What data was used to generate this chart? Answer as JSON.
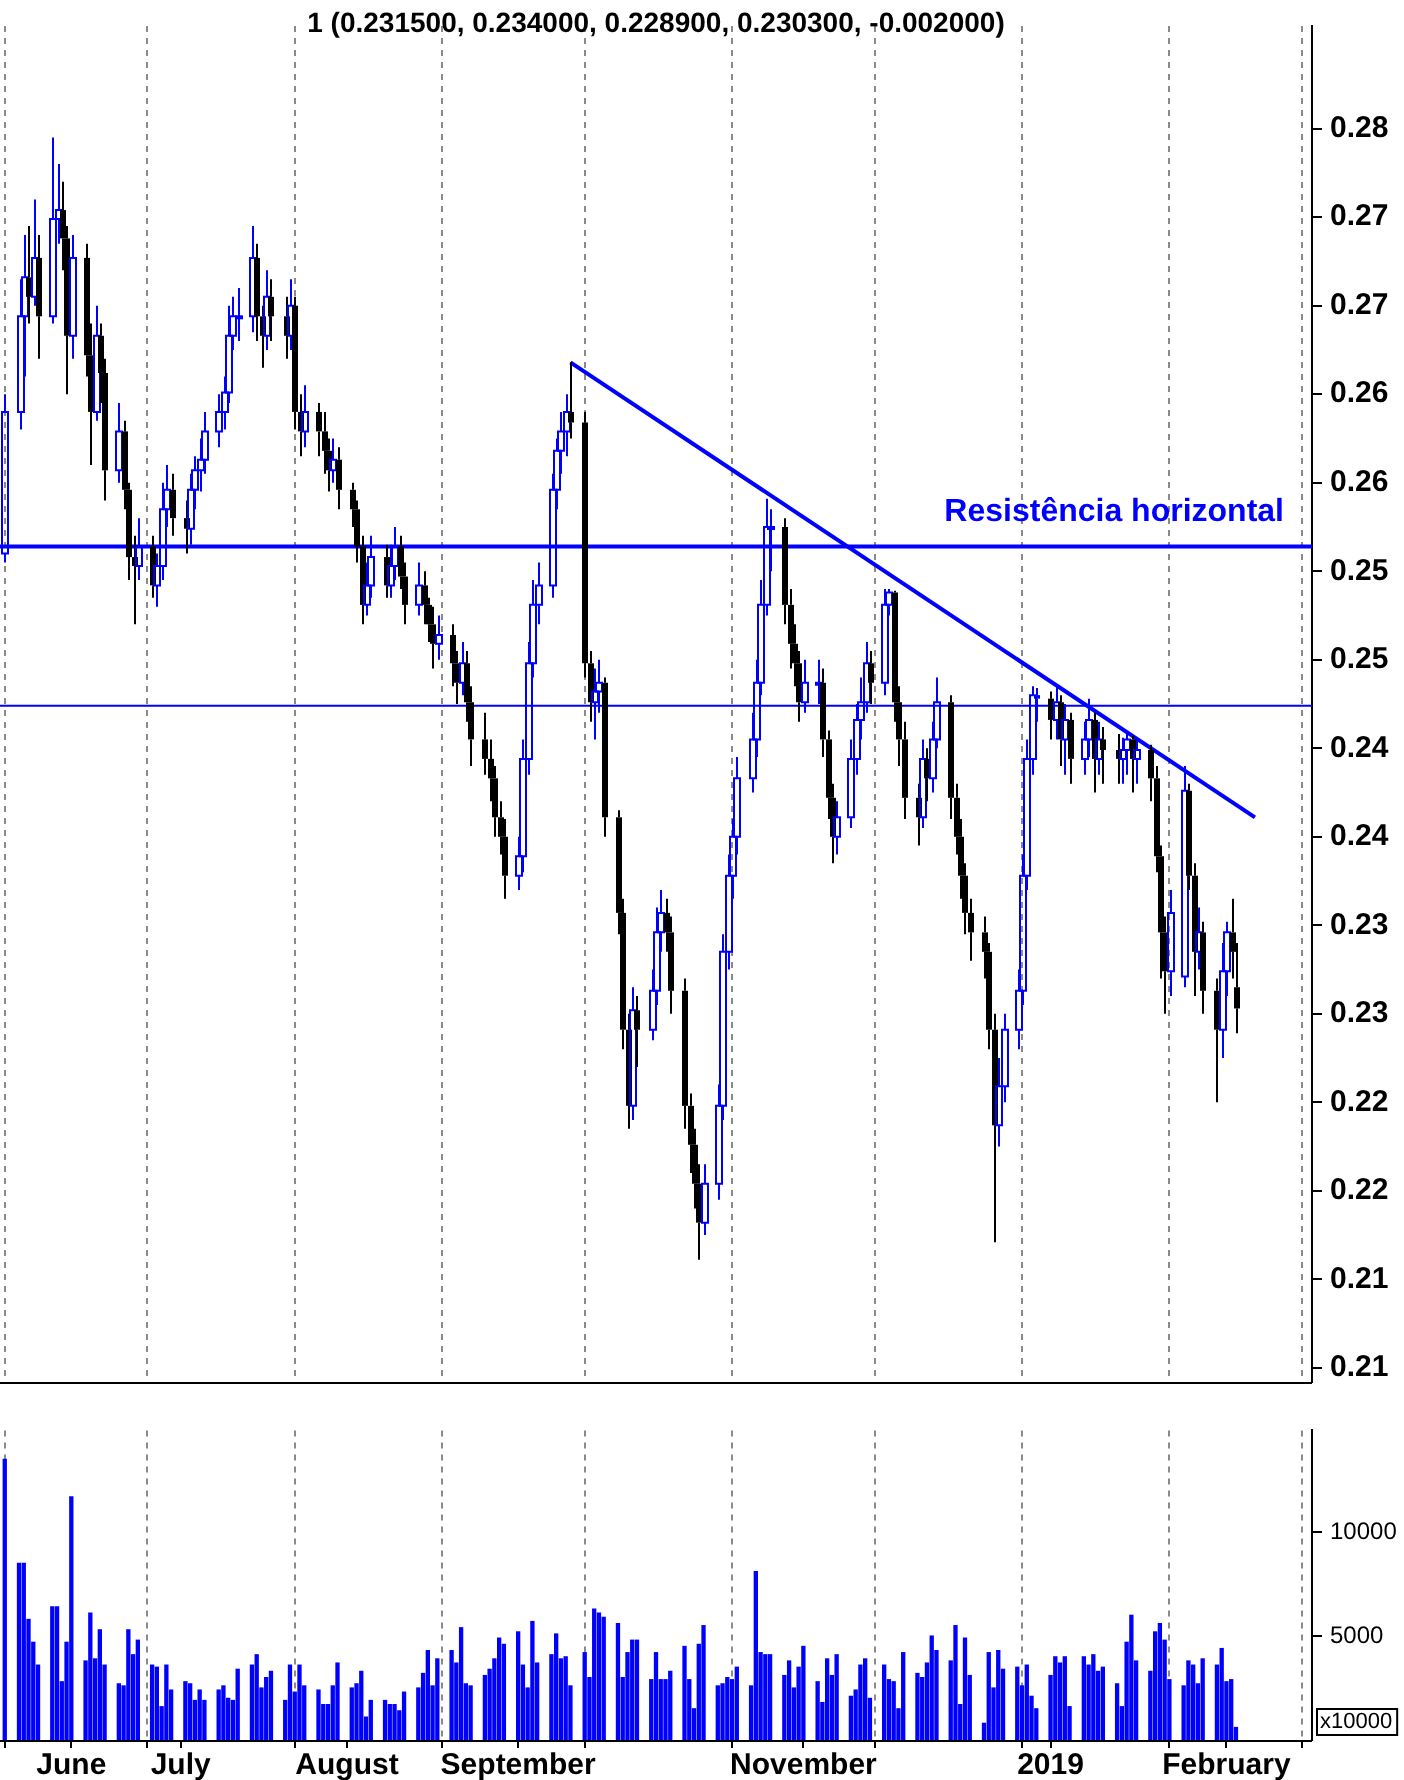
{
  "chart_data": [
    {
      "type": "candlestick",
      "title": "1 (0.231500, 0.234000, 0.228900, 0.230300, -0.002000)",
      "tick_labels": "y",
      "grid": "x",
      "xlim": [
        "2018-05-31",
        "2019-03-03"
      ],
      "xticks": [
        {
          "value": "2018-06-01",
          "label": null
        },
        {
          "value": "2018-07-01",
          "label": null
        },
        {
          "value": "2018-08-01",
          "label": null
        },
        {
          "value": "2018-09-01",
          "label": null
        },
        {
          "value": "2018-10-01",
          "label": null
        },
        {
          "value": "2018-11-01",
          "label": null
        },
        {
          "value": "2018-12-01",
          "label": null
        },
        {
          "value": "2019-01-01",
          "label": null
        },
        {
          "value": "2019-02-01",
          "label": null
        },
        {
          "value": "2019-03-01",
          "label": null
        }
      ],
      "ylim": [
        0.2092,
        0.2858
      ],
      "yticks": [
        {
          "value": 0.21,
          "label": "0.21"
        },
        {
          "value": 0.215,
          "label": "0.21"
        },
        {
          "value": 0.22,
          "label": "0.22"
        },
        {
          "value": 0.225,
          "label": "0.22"
        },
        {
          "value": 0.23,
          "label": "0.23"
        },
        {
          "value": 0.235,
          "label": "0.23"
        },
        {
          "value": 0.24,
          "label": "0.24"
        },
        {
          "value": 0.245,
          "label": "0.24"
        },
        {
          "value": 0.25,
          "label": "0.25"
        },
        {
          "value": 0.255,
          "label": "0.25"
        },
        {
          "value": 0.26,
          "label": "0.26"
        },
        {
          "value": 0.265,
          "label": "0.26"
        },
        {
          "value": 0.27,
          "label": "0.27"
        },
        {
          "value": 0.275,
          "label": "0.27"
        },
        {
          "value": 0.28,
          "label": "0.28"
        }
      ],
      "ref_lines": [
        {
          "axis": "y",
          "value": 0.2564,
          "label": "Resistência horizontal",
          "color": "#0000ff"
        },
        {
          "axis": "y",
          "value": 0.2474,
          "color": "#0000ff"
        }
      ],
      "series": [
        {
          "type": "line",
          "x": [
            "2018-09-28",
            "2019-02-19"
          ],
          "values": [
            0.2668,
            0.2411
          ],
          "color": "#0000ff"
        }
      ],
      "x": [
        "2018-06-01",
        "2018-06-04",
        "2018-06-05",
        "2018-06-06",
        "2018-06-07",
        "2018-06-08",
        "2018-06-11",
        "2018-06-12",
        "2018-06-13",
        "2018-06-14",
        "2018-06-15",
        "2018-06-18",
        "2018-06-19",
        "2018-06-20",
        "2018-06-21",
        "2018-06-22",
        "2018-06-25",
        "2018-06-26",
        "2018-06-27",
        "2018-06-28",
        "2018-06-29",
        "2018-07-02",
        "2018-07-03",
        "2018-07-04",
        "2018-07-05",
        "2018-07-06",
        "2018-07-09",
        "2018-07-10",
        "2018-07-11",
        "2018-07-12",
        "2018-07-13",
        "2018-07-16",
        "2018-07-17",
        "2018-07-18",
        "2018-07-19",
        "2018-07-20",
        "2018-07-23",
        "2018-07-24",
        "2018-07-25",
        "2018-07-26",
        "2018-07-27",
        "2018-07-30",
        "2018-07-31",
        "2018-08-01",
        "2018-08-02",
        "2018-08-03",
        "2018-08-06",
        "2018-08-07",
        "2018-08-08",
        "2018-08-09",
        "2018-08-10",
        "2018-08-13",
        "2018-08-14",
        "2018-08-15",
        "2018-08-16",
        "2018-08-17",
        "2018-08-20",
        "2018-08-21",
        "2018-08-22",
        "2018-08-23",
        "2018-08-24",
        "2018-08-27",
        "2018-08-28",
        "2018-08-29",
        "2018-08-30",
        "2018-08-31",
        "2018-09-03",
        "2018-09-04",
        "2018-09-05",
        "2018-09-06",
        "2018-09-07",
        "2018-09-10",
        "2018-09-11",
        "2018-09-12",
        "2018-09-13",
        "2018-09-14",
        "2018-09-17",
        "2018-09-18",
        "2018-09-19",
        "2018-09-20",
        "2018-09-21",
        "2018-09-24",
        "2018-09-25",
        "2018-09-26",
        "2018-09-27",
        "2018-09-28",
        "2018-10-01",
        "2018-10-02",
        "2018-10-03",
        "2018-10-04",
        "2018-10-05",
        "2018-10-08",
        "2018-10-09",
        "2018-10-10",
        "2018-10-11",
        "2018-10-12",
        "2018-10-15",
        "2018-10-16",
        "2018-10-17",
        "2018-10-18",
        "2018-10-19",
        "2018-10-22",
        "2018-10-23",
        "2018-10-24",
        "2018-10-25",
        "2018-10-26",
        "2018-10-29",
        "2018-10-30",
        "2018-10-31",
        "2018-11-01",
        "2018-11-02",
        "2018-11-05",
        "2018-11-06",
        "2018-11-07",
        "2018-11-08",
        "2018-11-09",
        "2018-11-12",
        "2018-11-13",
        "2018-11-14",
        "2018-11-15",
        "2018-11-16",
        "2018-11-19",
        "2018-11-20",
        "2018-11-21",
        "2018-11-22",
        "2018-11-23",
        "2018-11-26",
        "2018-11-27",
        "2018-11-28",
        "2018-11-29",
        "2018-11-30",
        "2018-12-03",
        "2018-12-04",
        "2018-12-05",
        "2018-12-06",
        "2018-12-07",
        "2018-12-10",
        "2018-12-11",
        "2018-12-12",
        "2018-12-13",
        "2018-12-14",
        "2018-12-17",
        "2018-12-18",
        "2018-12-19",
        "2018-12-20",
        "2018-12-21",
        "2018-12-24",
        "2018-12-25",
        "2018-12-26",
        "2018-12-27",
        "2018-12-28",
        "2018-12-31",
        "2019-01-01",
        "2019-01-02",
        "2019-01-03",
        "2019-01-04",
        "2019-01-07",
        "2019-01-08",
        "2019-01-09",
        "2019-01-10",
        "2019-01-11",
        "2019-01-14",
        "2019-01-15",
        "2019-01-16",
        "2019-01-17",
        "2019-01-18",
        "2019-01-21",
        "2019-01-22",
        "2019-01-23",
        "2019-01-24",
        "2019-01-25",
        "2019-01-28",
        "2019-01-29",
        "2019-01-30",
        "2019-01-31",
        "2019-02-01",
        "2019-02-04",
        "2019-02-05",
        "2019-02-06",
        "2019-02-07",
        "2019-02-08",
        "2019-02-11",
        "2019-02-12",
        "2019-02-13",
        "2019-02-14",
        "2019-02-15"
      ],
      "ohlc": [
        [
          0.256,
          0.265,
          0.2555,
          0.264
        ],
        [
          0.264,
          0.2715,
          0.263,
          0.2694
        ],
        [
          0.2694,
          0.274,
          0.266,
          0.2716
        ],
        [
          0.2716,
          0.2745,
          0.269,
          0.2705
        ],
        [
          0.2705,
          0.276,
          0.27,
          0.2727
        ],
        [
          0.2727,
          0.274,
          0.267,
          0.2694
        ],
        [
          0.2694,
          0.2795,
          0.269,
          0.2749
        ],
        [
          0.2749,
          0.278,
          0.2735,
          0.2754
        ],
        [
          0.2754,
          0.277,
          0.272,
          0.2738
        ],
        [
          0.2738,
          0.2745,
          0.265,
          0.2683
        ],
        [
          0.2683,
          0.274,
          0.267,
          0.2727
        ],
        [
          0.2727,
          0.2735,
          0.266,
          0.2672
        ],
        [
          0.2672,
          0.269,
          0.261,
          0.264
        ],
        [
          0.264,
          0.27,
          0.2635,
          0.2683
        ],
        [
          0.2683,
          0.269,
          0.2645,
          0.2662
        ],
        [
          0.2662,
          0.267,
          0.259,
          0.2607
        ],
        [
          0.2607,
          0.2645,
          0.26,
          0.2629
        ],
        [
          0.2629,
          0.2635,
          0.2585,
          0.2596
        ],
        [
          0.2596,
          0.26,
          0.2545,
          0.2558
        ],
        [
          0.2558,
          0.257,
          0.252,
          0.2553
        ],
        [
          0.2553,
          0.258,
          0.2545,
          0.2564
        ],
        [
          0.2564,
          0.257,
          0.2535,
          0.2542
        ],
        [
          0.2542,
          0.256,
          0.253,
          0.2553
        ],
        [
          0.2553,
          0.26,
          0.2545,
          0.2585
        ],
        [
          0.2585,
          0.261,
          0.2575,
          0.2596
        ],
        [
          0.2596,
          0.2605,
          0.257,
          0.258
        ],
        [
          0.258,
          0.259,
          0.256,
          0.2574
        ],
        [
          0.2574,
          0.2605,
          0.2565,
          0.2596
        ],
        [
          0.2596,
          0.2615,
          0.2585,
          0.2607
        ],
        [
          0.2607,
          0.2625,
          0.2595,
          0.2613
        ],
        [
          0.2613,
          0.264,
          0.2605,
          0.2629
        ],
        [
          0.2629,
          0.265,
          0.262,
          0.264
        ],
        [
          0.264,
          0.266,
          0.263,
          0.2651
        ],
        [
          0.2651,
          0.27,
          0.2645,
          0.2683
        ],
        [
          0.2683,
          0.2705,
          0.2675,
          0.2694
        ],
        [
          0.2694,
          0.271,
          0.268,
          0.2694
        ],
        [
          0.2694,
          0.2745,
          0.2685,
          0.2727
        ],
        [
          0.2727,
          0.2735,
          0.268,
          0.2694
        ],
        [
          0.2694,
          0.27,
          0.2665,
          0.2683
        ],
        [
          0.2683,
          0.272,
          0.2675,
          0.2705
        ],
        [
          0.2705,
          0.2715,
          0.268,
          0.2694
        ],
        [
          0.2694,
          0.2705,
          0.267,
          0.2683
        ],
        [
          0.2683,
          0.2715,
          0.2675,
          0.27
        ],
        [
          0.27,
          0.2705,
          0.263,
          0.264
        ],
        [
          0.264,
          0.265,
          0.2615,
          0.2629
        ],
        [
          0.2629,
          0.2655,
          0.262,
          0.264
        ],
        [
          0.264,
          0.2645,
          0.2615,
          0.2629
        ],
        [
          0.2629,
          0.264,
          0.2605,
          0.2618
        ],
        [
          0.2618,
          0.2625,
          0.2595,
          0.2607
        ],
        [
          0.2607,
          0.2625,
          0.26,
          0.2613
        ],
        [
          0.2613,
          0.262,
          0.2585,
          0.2596
        ],
        [
          0.2596,
          0.26,
          0.2575,
          0.2585
        ],
        [
          0.2585,
          0.259,
          0.2555,
          0.2564
        ],
        [
          0.2564,
          0.257,
          0.252,
          0.2531
        ],
        [
          0.2531,
          0.2555,
          0.2525,
          0.2542
        ],
        [
          0.2542,
          0.257,
          0.2535,
          0.2558
        ],
        [
          0.2558,
          0.2565,
          0.2535,
          0.2542
        ],
        [
          0.2542,
          0.2565,
          0.2535,
          0.2553
        ],
        [
          0.2553,
          0.2575,
          0.2545,
          0.2564
        ],
        [
          0.2564,
          0.257,
          0.254,
          0.2547
        ],
        [
          0.2547,
          0.2555,
          0.252,
          0.2531
        ],
        [
          0.2531,
          0.2555,
          0.2525,
          0.2542
        ],
        [
          0.2542,
          0.255,
          0.252,
          0.2531
        ],
        [
          0.2531,
          0.2535,
          0.251,
          0.252
        ],
        [
          0.252,
          0.253,
          0.2495,
          0.2509
        ],
        [
          0.2509,
          0.2525,
          0.25,
          0.2514
        ],
        [
          0.2514,
          0.252,
          0.2485,
          0.2498
        ],
        [
          0.2498,
          0.2505,
          0.2475,
          0.2487
        ],
        [
          0.2487,
          0.251,
          0.248,
          0.2498
        ],
        [
          0.2498,
          0.2505,
          0.2465,
          0.2476
        ],
        [
          0.2476,
          0.2485,
          0.244,
          0.2455
        ],
        [
          0.2455,
          0.247,
          0.2435,
          0.2444
        ],
        [
          0.2444,
          0.2455,
          0.242,
          0.2433
        ],
        [
          0.2433,
          0.244,
          0.24,
          0.2411
        ],
        [
          0.2411,
          0.242,
          0.239,
          0.24
        ],
        [
          0.24,
          0.241,
          0.2365,
          0.2378
        ],
        [
          0.2378,
          0.24,
          0.237,
          0.2389
        ],
        [
          0.2389,
          0.2455,
          0.238,
          0.2444
        ],
        [
          0.2444,
          0.251,
          0.2435,
          0.2498
        ],
        [
          0.2498,
          0.2545,
          0.249,
          0.2531
        ],
        [
          0.2531,
          0.2555,
          0.252,
          0.2542
        ],
        [
          0.2542,
          0.2605,
          0.2535,
          0.2596
        ],
        [
          0.2596,
          0.2625,
          0.2585,
          0.2618
        ],
        [
          0.2618,
          0.264,
          0.2605,
          0.2629
        ],
        [
          0.2629,
          0.265,
          0.2615,
          0.264
        ],
        [
          0.264,
          0.2668,
          0.2625,
          0.2634
        ],
        [
          0.2634,
          0.264,
          0.249,
          0.2498
        ],
        [
          0.2498,
          0.2505,
          0.2465,
          0.2476
        ],
        [
          0.2476,
          0.2495,
          0.2455,
          0.2482
        ],
        [
          0.2482,
          0.25,
          0.247,
          0.2487
        ],
        [
          0.2487,
          0.249,
          0.24,
          0.2411
        ],
        [
          0.2411,
          0.2415,
          0.2345,
          0.2357
        ],
        [
          0.2357,
          0.2365,
          0.228,
          0.2291
        ],
        [
          0.2291,
          0.23,
          0.2235,
          0.2248
        ],
        [
          0.2248,
          0.2315,
          0.224,
          0.2302
        ],
        [
          0.2302,
          0.231,
          0.227,
          0.2291
        ],
        [
          0.2291,
          0.2325,
          0.2285,
          0.2313
        ],
        [
          0.2313,
          0.236,
          0.2305,
          0.2346
        ],
        [
          0.2346,
          0.237,
          0.2335,
          0.2357
        ],
        [
          0.2357,
          0.2365,
          0.2335,
          0.2346
        ],
        [
          0.2346,
          0.2355,
          0.23,
          0.2313
        ],
        [
          0.2313,
          0.232,
          0.2235,
          0.2248
        ],
        [
          0.2248,
          0.2255,
          0.221,
          0.2226
        ],
        [
          0.2226,
          0.2235,
          0.219,
          0.2204
        ],
        [
          0.2204,
          0.2215,
          0.2161,
          0.2182
        ],
        [
          0.2182,
          0.2215,
          0.2175,
          0.2204
        ],
        [
          0.2204,
          0.226,
          0.2195,
          0.2248
        ],
        [
          0.2248,
          0.2345,
          0.224,
          0.2335
        ],
        [
          0.2335,
          0.239,
          0.2325,
          0.2378
        ],
        [
          0.2378,
          0.241,
          0.2365,
          0.24
        ],
        [
          0.24,
          0.2445,
          0.239,
          0.2433
        ],
        [
          0.2433,
          0.247,
          0.2425,
          0.2455
        ],
        [
          0.2455,
          0.25,
          0.2445,
          0.2487
        ],
        [
          0.2487,
          0.2545,
          0.248,
          0.2531
        ],
        [
          0.2531,
          0.2591,
          0.2525,
          0.2575
        ],
        [
          0.2575,
          0.2585,
          0.255,
          0.2575
        ],
        [
          0.2575,
          0.258,
          0.252,
          0.2531
        ],
        [
          0.2531,
          0.254,
          0.2495,
          0.2509
        ],
        [
          0.2509,
          0.252,
          0.2485,
          0.2498
        ],
        [
          0.2498,
          0.2505,
          0.2465,
          0.2476
        ],
        [
          0.2476,
          0.25,
          0.247,
          0.2487
        ],
        [
          0.2487,
          0.25,
          0.2475,
          0.2487
        ],
        [
          0.2487,
          0.2495,
          0.2445,
          0.2455
        ],
        [
          0.2455,
          0.246,
          0.241,
          0.2422
        ],
        [
          0.2422,
          0.243,
          0.2385,
          0.24
        ],
        [
          0.24,
          0.242,
          0.239,
          0.2411
        ],
        [
          0.2411,
          0.2455,
          0.2405,
          0.2444
        ],
        [
          0.2444,
          0.2475,
          0.2435,
          0.2466
        ],
        [
          0.2466,
          0.249,
          0.2455,
          0.2476
        ],
        [
          0.2476,
          0.251,
          0.247,
          0.2498
        ],
        [
          0.2498,
          0.2505,
          0.2475,
          0.2487
        ],
        [
          0.2487,
          0.254,
          0.248,
          0.2531
        ],
        [
          0.2531,
          0.254,
          0.2525,
          0.2538
        ],
        [
          0.2538,
          0.2539,
          0.2465,
          0.2476
        ],
        [
          0.2476,
          0.2485,
          0.244,
          0.2455
        ],
        [
          0.2455,
          0.2465,
          0.241,
          0.2422
        ],
        [
          0.2422,
          0.243,
          0.2395,
          0.2411
        ],
        [
          0.2411,
          0.2455,
          0.2405,
          0.2444
        ],
        [
          0.2444,
          0.245,
          0.242,
          0.2433
        ],
        [
          0.2433,
          0.2465,
          0.2425,
          0.2455
        ],
        [
          0.2455,
          0.249,
          0.245,
          0.2476
        ],
        [
          0.2476,
          0.248,
          0.241,
          0.2422
        ],
        [
          0.2422,
          0.243,
          0.239,
          0.24
        ],
        [
          0.24,
          0.241,
          0.2365,
          0.2378
        ],
        [
          0.2378,
          0.2385,
          0.2345,
          0.2357
        ],
        [
          0.2357,
          0.2365,
          0.233,
          0.2346
        ],
        [
          0.2346,
          0.2355,
          0.232,
          0.2335
        ],
        [
          0.2335,
          0.234,
          0.228,
          0.2291
        ],
        [
          0.2291,
          0.23,
          0.2171,
          0.2237
        ],
        [
          0.2237,
          0.2275,
          0.2225,
          0.2259
        ],
        [
          0.2259,
          0.23,
          0.225,
          0.2291
        ],
        [
          0.2291,
          0.2325,
          0.228,
          0.2313
        ],
        [
          0.2313,
          0.239,
          0.2305,
          0.2378
        ],
        [
          0.2378,
          0.2455,
          0.237,
          0.2444
        ],
        [
          0.2444,
          0.2485,
          0.2435,
          0.248
        ],
        [
          0.248,
          0.2484,
          0.2465,
          0.2478
        ],
        [
          0.2478,
          0.2482,
          0.2455,
          0.2466
        ],
        [
          0.2466,
          0.2485,
          0.2455,
          0.2476
        ],
        [
          0.2476,
          0.248,
          0.244,
          0.2455
        ],
        [
          0.2455,
          0.2475,
          0.2435,
          0.2466
        ],
        [
          0.2466,
          0.247,
          0.243,
          0.2444
        ],
        [
          0.2444,
          0.2465,
          0.2435,
          0.2455
        ],
        [
          0.2455,
          0.2478,
          0.2445,
          0.2466
        ],
        [
          0.2466,
          0.247,
          0.2425,
          0.2444
        ],
        [
          0.2444,
          0.2465,
          0.2435,
          0.2455
        ],
        [
          0.2455,
          0.2462,
          0.243,
          0.2449
        ],
        [
          0.2449,
          0.2458,
          0.243,
          0.2444
        ],
        [
          0.2444,
          0.2456,
          0.243,
          0.2449
        ],
        [
          0.2449,
          0.2458,
          0.2435,
          0.2455
        ],
        [
          0.2455,
          0.2457,
          0.2425,
          0.2444
        ],
        [
          0.2444,
          0.2455,
          0.243,
          0.2449
        ],
        [
          0.2449,
          0.2452,
          0.242,
          0.2433
        ],
        [
          0.2433,
          0.244,
          0.238,
          0.2389
        ],
        [
          0.2389,
          0.2395,
          0.232,
          0.2346
        ],
        [
          0.2346,
          0.2355,
          0.23,
          0.2324
        ],
        [
          0.2324,
          0.237,
          0.231,
          0.2357
        ],
        [
          0.2321,
          0.244,
          0.2315,
          0.2426
        ],
        [
          0.2426,
          0.243,
          0.237,
          0.2378
        ],
        [
          0.2378,
          0.2385,
          0.231,
          0.2335
        ],
        [
          0.2335,
          0.236,
          0.2325,
          0.2346
        ],
        [
          0.2346,
          0.2352,
          0.23,
          0.2313
        ],
        [
          0.2313,
          0.232,
          0.225,
          0.2291
        ],
        [
          0.2291,
          0.234,
          0.2275,
          0.2324
        ],
        [
          0.2324,
          0.2352,
          0.231,
          0.2346
        ],
        [
          0.2346,
          0.2365,
          0.232,
          0.2335
        ],
        [
          0.2315,
          0.234,
          0.2289,
          0.2303
        ]
      ],
      "colors": [
        "#0000ff",
        "#0000ff",
        "#0000ff",
        "#000000",
        "#0000ff",
        "#000000",
        "#0000ff",
        "#0000ff",
        "#000000",
        "#000000",
        "#0000ff",
        "#000000",
        "#000000",
        "#0000ff",
        "#000000",
        "#000000",
        "#0000ff",
        "#000000",
        "#000000",
        "#000000",
        "#0000ff",
        "#000000",
        "#0000ff",
        "#0000ff",
        "#0000ff",
        "#000000",
        "#000000",
        "#0000ff",
        "#0000ff",
        "#0000ff",
        "#0000ff",
        "#0000ff",
        "#0000ff",
        "#0000ff",
        "#0000ff",
        "#0000ff",
        "#0000ff",
        "#000000",
        "#000000",
        "#0000ff",
        "#000000",
        "#000000",
        "#0000ff",
        "#000000",
        "#000000",
        "#0000ff",
        "#000000",
        "#000000",
        "#000000",
        "#0000ff",
        "#000000",
        "#000000",
        "#000000",
        "#000000",
        "#0000ff",
        "#0000ff",
        "#000000",
        "#0000ff",
        "#0000ff",
        "#000000",
        "#000000",
        "#0000ff",
        "#000000",
        "#000000",
        "#000000",
        "#0000ff",
        "#000000",
        "#000000",
        "#0000ff",
        "#000000",
        "#000000",
        "#000000",
        "#000000",
        "#000000",
        "#000000",
        "#000000",
        "#0000ff",
        "#0000ff",
        "#0000ff",
        "#0000ff",
        "#0000ff",
        "#0000ff",
        "#0000ff",
        "#0000ff",
        "#0000ff",
        "#000000",
        "#000000",
        "#000000",
        "#0000ff",
        "#0000ff",
        "#000000",
        "#000000",
        "#000000",
        "#000000",
        "#0000ff",
        "#000000",
        "#0000ff",
        "#0000ff",
        "#0000ff",
        "#000000",
        "#000000",
        "#000000",
        "#000000",
        "#000000",
        "#000000",
        "#0000ff",
        "#0000ff",
        "#0000ff",
        "#0000ff",
        "#0000ff",
        "#0000ff",
        "#0000ff",
        "#0000ff",
        "#0000ff",
        "#0000ff",
        "#0000ff",
        "#000000",
        "#000000",
        "#000000",
        "#000000",
        "#0000ff",
        "#0000ff",
        "#000000",
        "#000000",
        "#000000",
        "#0000ff",
        "#0000ff",
        "#0000ff",
        "#0000ff",
        "#0000ff",
        "#000000",
        "#0000ff",
        "#0000ff",
        "#000000",
        "#000000",
        "#000000",
        "#000000",
        "#0000ff",
        "#000000",
        "#0000ff",
        "#0000ff",
        "#000000",
        "#000000",
        "#000000",
        "#000000",
        "#000000",
        "#000000",
        "#000000",
        "#000000",
        "#0000ff",
        "#0000ff",
        "#0000ff",
        "#0000ff",
        "#0000ff",
        "#0000ff",
        "#0000ff",
        "#000000",
        "#0000ff",
        "#000000",
        "#0000ff",
        "#000000",
        "#0000ff",
        "#0000ff",
        "#000000",
        "#0000ff",
        "#000000",
        "#000000",
        "#0000ff",
        "#0000ff",
        "#000000",
        "#0000ff",
        "#000000",
        "#000000",
        "#000000",
        "#000000",
        "#0000ff",
        "#0000ff",
        "#000000",
        "#000000",
        "#0000ff",
        "#000000",
        "#000000",
        "#0000ff",
        "#0000ff",
        "#000000",
        "#000000"
      ]
    },
    {
      "type": "bar",
      "grid": "x",
      "color": "#0000ff",
      "annotations": [
        "x10000"
      ],
      "xlim": [
        "2018-05-31",
        "2019-03-03"
      ],
      "xticks": [
        {
          "value": "2018-06-01",
          "label": null
        },
        {
          "value": "2018-06-15",
          "label": "June"
        },
        {
          "value": "2018-07-01",
          "label": null
        },
        {
          "value": "2018-07-08",
          "label": "July"
        },
        {
          "value": "2018-08-01",
          "label": null
        },
        {
          "value": "2018-08-12",
          "label": "August"
        },
        {
          "value": "2018-09-01",
          "label": null
        },
        {
          "value": "2018-09-17",
          "label": "September"
        },
        {
          "value": "2018-10-01",
          "label": null
        },
        {
          "value": "2018-11-01",
          "label": null
        },
        {
          "value": "2018-11-16",
          "label": "November"
        },
        {
          "value": "2018-12-01",
          "label": null
        },
        {
          "value": "2019-01-01",
          "label": null
        },
        {
          "value": "2019-01-07",
          "label": "2019"
        },
        {
          "value": "2019-02-01",
          "label": null
        },
        {
          "value": "2019-02-13",
          "label": "February"
        },
        {
          "value": "2019-03-01",
          "label": null
        }
      ],
      "ylim": [
        0,
        14900
      ],
      "yticks": [
        5000,
        10000
      ],
      "x": [
        "2018-06-01",
        "2018-06-04",
        "2018-06-05",
        "2018-06-06",
        "2018-06-07",
        "2018-06-08",
        "2018-06-11",
        "2018-06-12",
        "2018-06-13",
        "2018-06-14",
        "2018-06-15",
        "2018-06-18",
        "2018-06-19",
        "2018-06-20",
        "2018-06-21",
        "2018-06-22",
        "2018-06-25",
        "2018-06-26",
        "2018-06-27",
        "2018-06-28",
        "2018-06-29",
        "2018-07-02",
        "2018-07-03",
        "2018-07-04",
        "2018-07-05",
        "2018-07-06",
        "2018-07-09",
        "2018-07-10",
        "2018-07-11",
        "2018-07-12",
        "2018-07-13",
        "2018-07-16",
        "2018-07-17",
        "2018-07-18",
        "2018-07-19",
        "2018-07-20",
        "2018-07-23",
        "2018-07-24",
        "2018-07-25",
        "2018-07-26",
        "2018-07-27",
        "2018-07-30",
        "2018-07-31",
        "2018-08-01",
        "2018-08-02",
        "2018-08-03",
        "2018-08-06",
        "2018-08-07",
        "2018-08-08",
        "2018-08-09",
        "2018-08-10",
        "2018-08-13",
        "2018-08-14",
        "2018-08-15",
        "2018-08-16",
        "2018-08-17",
        "2018-08-20",
        "2018-08-21",
        "2018-08-22",
        "2018-08-23",
        "2018-08-24",
        "2018-08-27",
        "2018-08-28",
        "2018-08-29",
        "2018-08-30",
        "2018-08-31",
        "2018-09-03",
        "2018-09-04",
        "2018-09-05",
        "2018-09-06",
        "2018-09-07",
        "2018-09-10",
        "2018-09-11",
        "2018-09-12",
        "2018-09-13",
        "2018-09-14",
        "2018-09-17",
        "2018-09-18",
        "2018-09-19",
        "2018-09-20",
        "2018-09-21",
        "2018-09-24",
        "2018-09-25",
        "2018-09-26",
        "2018-09-27",
        "2018-09-28",
        "2018-10-01",
        "2018-10-02",
        "2018-10-03",
        "2018-10-04",
        "2018-10-05",
        "2018-10-08",
        "2018-10-09",
        "2018-10-10",
        "2018-10-11",
        "2018-10-12",
        "2018-10-15",
        "2018-10-16",
        "2018-10-17",
        "2018-10-18",
        "2018-10-19",
        "2018-10-22",
        "2018-10-23",
        "2018-10-24",
        "2018-10-25",
        "2018-10-26",
        "2018-10-29",
        "2018-10-30",
        "2018-10-31",
        "2018-11-01",
        "2018-11-02",
        "2018-11-05",
        "2018-11-06",
        "2018-11-07",
        "2018-11-08",
        "2018-11-09",
        "2018-11-12",
        "2018-11-13",
        "2018-11-14",
        "2018-11-15",
        "2018-11-16",
        "2018-11-19",
        "2018-11-20",
        "2018-11-21",
        "2018-11-22",
        "2018-11-23",
        "2018-11-26",
        "2018-11-27",
        "2018-11-28",
        "2018-11-29",
        "2018-11-30",
        "2018-12-03",
        "2018-12-04",
        "2018-12-05",
        "2018-12-06",
        "2018-12-07",
        "2018-12-10",
        "2018-12-11",
        "2018-12-12",
        "2018-12-13",
        "2018-12-14",
        "2018-12-17",
        "2018-12-18",
        "2018-12-19",
        "2018-12-20",
        "2018-12-21",
        "2018-12-24",
        "2018-12-25",
        "2018-12-26",
        "2018-12-27",
        "2018-12-28",
        "2018-12-31",
        "2019-01-01",
        "2019-01-02",
        "2019-01-03",
        "2019-01-04",
        "2019-01-07",
        "2019-01-08",
        "2019-01-09",
        "2019-01-10",
        "2019-01-11",
        "2019-01-14",
        "2019-01-15",
        "2019-01-16",
        "2019-01-17",
        "2019-01-18",
        "2019-01-21",
        "2019-01-22",
        "2019-01-23",
        "2019-01-24",
        "2019-01-25",
        "2019-01-28",
        "2019-01-29",
        "2019-01-30",
        "2019-01-31",
        "2019-02-01",
        "2019-02-04",
        "2019-02-05",
        "2019-02-06",
        "2019-02-07",
        "2019-02-08",
        "2019-02-11",
        "2019-02-12",
        "2019-02-13",
        "2019-02-14",
        "2019-02-15"
      ],
      "values": [
        13500,
        8500,
        8500,
        5800,
        4700,
        3600,
        6400,
        6400,
        2800,
        4700,
        11700,
        3800,
        6100,
        3900,
        5300,
        3600,
        2700,
        2600,
        5300,
        4100,
        4800,
        3600,
        3500,
        1600,
        3600,
        2400,
        2800,
        2700,
        1900,
        2400,
        1900,
        2400,
        2600,
        2000,
        1900,
        3400,
        3600,
        4100,
        2500,
        3000,
        3300,
        1900,
        3600,
        2300,
        3600,
        2600,
        2400,
        1700,
        1700,
        2600,
        3700,
        2500,
        2700,
        3300,
        1100,
        1900,
        1900,
        1700,
        1700,
        1400,
        2300,
        2500,
        3200,
        4300,
        2600,
        3900,
        4300,
        3700,
        5400,
        2700,
        2600,
        3100,
        3400,
        3900,
        4900,
        4600,
        5200,
        3600,
        2500,
        5700,
        3700,
        4100,
        5100,
        3900,
        4000,
        2600,
        4200,
        3000,
        6300,
        6100,
        5900,
        5600,
        3000,
        4200,
        4800,
        4800,
        2900,
        4200,
        2900,
        2900,
        3300,
        4500,
        2900,
        1500,
        4600,
        5500,
        2600,
        2700,
        3000,
        2900,
        3500,
        2600,
        8100,
        4200,
        4100,
        4100,
        3100,
        3800,
        2500,
        3500,
        4500,
        2800,
        1800,
        3900,
        3100,
        4100,
        2100,
        2400,
        3600,
        3900,
        2000,
        3600,
        2900,
        2800,
        1500,
        4200,
        3200,
        3000,
        3700,
        5000,
        4300,
        3800,
        5500,
        1700,
        4900,
        3100,
        800,
        4200,
        2500,
        4300,
        3400,
        3500,
        2600,
        3600,
        2100,
        1500,
        3100,
        4000,
        3700,
        4000,
        1600,
        4000,
        3600,
        4100,
        3300,
        3500,
        2700,
        1600,
        4700,
        6000,
        3800,
        3300,
        5200,
        5600,
        4800,
        2900,
        2600,
        3800,
        3600,
        2700,
        3900,
        3600,
        4400,
        2800,
        2900,
        600
      ]
    }
  ]
}
